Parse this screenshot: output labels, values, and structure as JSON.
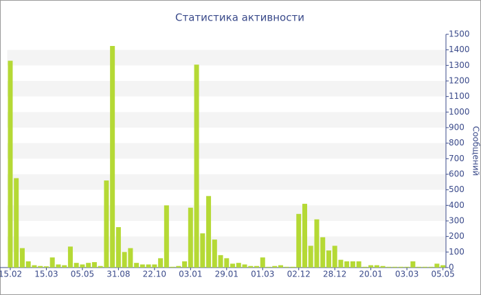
{
  "chart_data": {
    "type": "bar",
    "title": "Статистика активности",
    "y_label": "Сообщений",
    "categories": [
      "15.02",
      null,
      null,
      null,
      null,
      null,
      "15.03",
      null,
      null,
      null,
      null,
      null,
      "05.05",
      null,
      null,
      null,
      null,
      null,
      "31.08",
      null,
      null,
      null,
      null,
      null,
      "22.10",
      null,
      null,
      null,
      null,
      null,
      "03.01",
      null,
      null,
      null,
      null,
      null,
      "29.01",
      null,
      null,
      null,
      null,
      null,
      "01.03",
      null,
      null,
      null,
      null,
      null,
      "02.12",
      null,
      null,
      null,
      null,
      null,
      "28.12",
      null,
      null,
      null,
      null,
      null,
      "20.01",
      null,
      null,
      null,
      null,
      null,
      "03.03",
      null,
      null,
      null,
      null,
      null,
      "05.05"
    ],
    "values": [
      1330,
      575,
      125,
      40,
      15,
      10,
      8,
      65,
      20,
      15,
      135,
      30,
      20,
      30,
      35,
      10,
      560,
      1425,
      260,
      100,
      125,
      30,
      20,
      20,
      20,
      60,
      400,
      5,
      10,
      40,
      385,
      1305,
      220,
      460,
      180,
      80,
      60,
      25,
      30,
      20,
      10,
      10,
      65,
      5,
      10,
      15,
      5,
      5,
      345,
      410,
      140,
      310,
      195,
      110,
      140,
      50,
      40,
      40,
      40,
      5,
      15,
      15,
      10,
      5,
      5,
      5,
      5,
      40,
      5,
      5,
      5,
      25,
      15
    ],
    "color": "#b5d935",
    "ylim": [
      0,
      1500
    ],
    "yticks": [
      0,
      100,
      200,
      300,
      400,
      500,
      600,
      700,
      800,
      900,
      1000,
      1100,
      1200,
      1300,
      1400,
      1500
    ],
    "grid": true,
    "y_axis_side": "right"
  }
}
